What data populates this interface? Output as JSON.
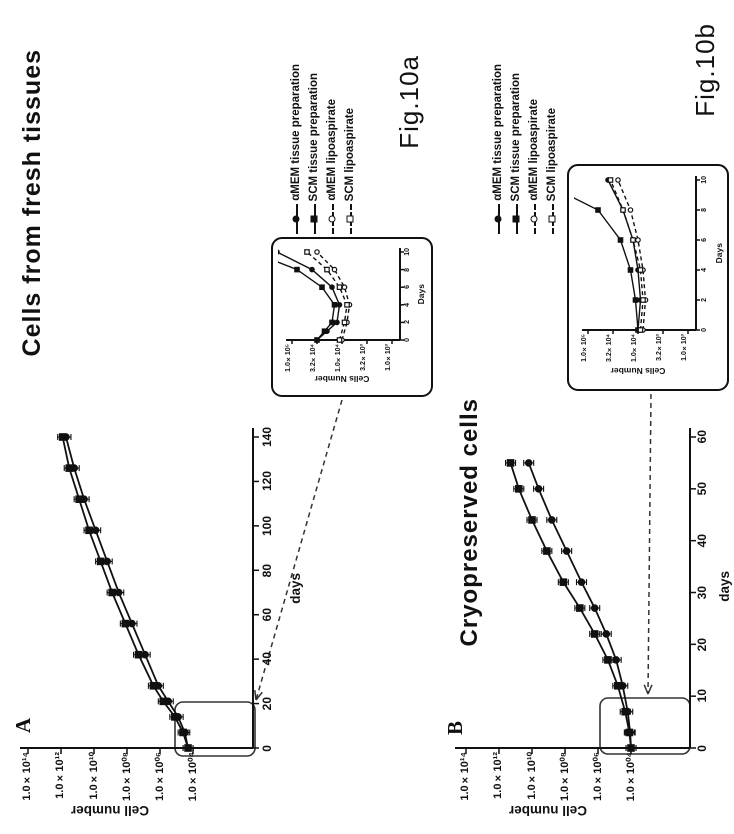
{
  "page": {
    "background": "#ffffff",
    "ink": "#111111"
  },
  "fig_labels": {
    "a": "Fig.10a",
    "b": "Fig.10b"
  },
  "panel_a": {
    "marker": "A",
    "title": "Cells from fresh tissues",
    "axis": {
      "value_label": "Cell number",
      "day_label": "days",
      "value_tick_labels": [
        "1.0×10¹⁴",
        "1.0×10¹²",
        "1.0×10¹⁰",
        "1.0×10⁰⁸",
        "1.0×10⁰⁶",
        "1.0×10⁰⁴"
      ],
      "day_tick_labels": [
        "0",
        "20",
        "40",
        "60",
        "80",
        "100",
        "120",
        "140"
      ]
    },
    "legend": [
      {
        "label": "αMEM tissue preparation",
        "marker": "filled-circle",
        "line": "solid"
      },
      {
        "label": "SCM tissue preparation",
        "marker": "filled-square",
        "line": "solid"
      },
      {
        "label": "αMEM lipoaspirate",
        "marker": "open-circle",
        "line": "dashed"
      },
      {
        "label": "SCM lipoaspirate",
        "marker": "open-square",
        "line": "dashed"
      }
    ],
    "inset": {
      "value_label": "Cells Number",
      "day_label": "Days",
      "value_tick_labels": [
        "1.0×10⁵",
        "3.2×10⁴",
        "1.0×10⁴",
        "3.2×10³",
        "1.0×10³"
      ],
      "day_tick_labels": [
        "0",
        "2",
        "4",
        "6",
        "8",
        "10"
      ]
    }
  },
  "panel_b": {
    "marker": "B",
    "title": "Cryopreserved cells",
    "axis": {
      "value_label": "Cell number",
      "day_label": "days",
      "value_tick_labels": [
        "1.0×10¹⁴",
        "1.0×10¹²",
        "1.0×10¹⁰",
        "1.0×10⁰⁸",
        "1.0×10⁰⁶",
        "1.0×10⁰⁴"
      ],
      "day_tick_labels": [
        "0",
        "10",
        "20",
        "30",
        "40",
        "50",
        "60"
      ]
    },
    "legend": [
      {
        "label": "αMEM tissue preparation",
        "marker": "filled-circle",
        "line": "solid"
      },
      {
        "label": "SCM tissue preparation",
        "marker": "filled-square",
        "line": "solid"
      },
      {
        "label": "αMEM lipoaspirate",
        "marker": "open-circle",
        "line": "dashed"
      },
      {
        "label": "SCM lipoaspirate",
        "marker": "open-square",
        "line": "dashed"
      }
    ],
    "inset": {
      "value_label": "Cells Number",
      "day_label": "Days",
      "value_tick_labels": [
        "1.0×10⁵",
        "3.2×10⁴",
        "1.0×10⁴",
        "3.2×10³",
        "1.0×10³"
      ],
      "day_tick_labels": [
        "0",
        "2",
        "4",
        "6",
        "8",
        "10"
      ]
    }
  },
  "chart_data": [
    {
      "id": "main_a",
      "type": "line",
      "panel": "A",
      "title": "Cells from fresh tissues",
      "xlabel": "days",
      "ylabel": "Cell number",
      "x_range": [
        0,
        140
      ],
      "x_ticks": [
        0,
        20,
        40,
        60,
        80,
        100,
        120,
        140
      ],
      "y_scale": "log10",
      "y_tick_exponents": [
        14,
        12,
        10,
        8,
        6,
        4
      ],
      "error_bars": true,
      "series": [
        {
          "name": "αMEM tissue preparation",
          "marker": "filled-circle",
          "line": "solid",
          "x": [
            0,
            7,
            14,
            21,
            28,
            42,
            56,
            70,
            84,
            98,
            112,
            126,
            140
          ],
          "y_log10": [
            4.3,
            4.5,
            4.9,
            5.5,
            6.1,
            6.9,
            7.7,
            8.5,
            9.2,
            9.9,
            10.6,
            11.2,
            11.7
          ]
        },
        {
          "name": "SCM tissue preparation",
          "marker": "filled-square",
          "line": "solid",
          "x": [
            0,
            7,
            14,
            21,
            28,
            42,
            56,
            70,
            84,
            98,
            112,
            126,
            140
          ],
          "y_log10": [
            4.3,
            4.6,
            5.1,
            5.8,
            6.4,
            7.3,
            8.1,
            8.9,
            9.6,
            10.3,
            10.9,
            11.5,
            11.9
          ]
        }
      ]
    },
    {
      "id": "inset_a",
      "type": "line",
      "panel": "A",
      "title": "Inset: first 10 days (fresh tissues)",
      "xlabel": "Days",
      "ylabel": "Cells Number",
      "x_range": [
        0,
        10
      ],
      "x_ticks": [
        0,
        2,
        4,
        6,
        8,
        10
      ],
      "y_scale": "log10",
      "y_tick_exponents": [
        5,
        4.5,
        4,
        3.5,
        3
      ],
      "error_bars": false,
      "series": [
        {
          "name": "αMEM tissue preparation",
          "marker": "filled-circle",
          "line": "solid",
          "x": [
            0,
            1,
            2,
            4,
            6,
            8,
            10
          ],
          "y_log10": [
            4.5,
            4.3,
            4.1,
            4.05,
            4.2,
            4.6,
            5.3
          ]
        },
        {
          "name": "SCM tissue preparation",
          "marker": "filled-square",
          "line": "solid",
          "x": [
            0,
            1,
            2,
            4,
            6,
            8,
            10
          ],
          "y_log10": [
            4.5,
            4.35,
            4.2,
            4.15,
            4.4,
            4.9,
            5.8
          ]
        },
        {
          "name": "αMEM lipoaspirate",
          "marker": "open-circle",
          "line": "dashed",
          "x": [
            0,
            2,
            4,
            6,
            8,
            10
          ],
          "y_log10": [
            4.0,
            3.9,
            3.85,
            3.95,
            4.15,
            4.5
          ]
        },
        {
          "name": "SCM lipoaspirate",
          "marker": "open-square",
          "line": "dashed",
          "x": [
            0,
            2,
            4,
            6,
            8,
            10
          ],
          "y_log10": [
            4.05,
            3.95,
            3.9,
            4.05,
            4.3,
            4.7
          ]
        }
      ]
    },
    {
      "id": "main_b",
      "type": "line",
      "panel": "B",
      "title": "Cryopreserved cells",
      "xlabel": "days",
      "ylabel": "Cell number",
      "x_range": [
        0,
        60
      ],
      "x_ticks": [
        0,
        10,
        20,
        30,
        40,
        50,
        60
      ],
      "y_scale": "log10",
      "y_tick_exponents": [
        14,
        12,
        10,
        8,
        6,
        4
      ],
      "error_bars": true,
      "series": [
        {
          "name": "αMEM tissue preparation",
          "marker": "filled-circle",
          "line": "solid",
          "x": [
            0,
            3,
            7,
            12,
            17,
            22,
            27,
            32,
            38,
            44,
            50,
            55
          ],
          "y_log10": [
            4.0,
            4.05,
            4.2,
            4.5,
            4.9,
            5.5,
            6.2,
            7.0,
            7.9,
            8.8,
            9.6,
            10.2
          ]
        },
        {
          "name": "SCM tissue preparation",
          "marker": "filled-square",
          "line": "solid",
          "x": [
            0,
            3,
            7,
            12,
            17,
            22,
            27,
            32,
            38,
            44,
            50,
            55
          ],
          "y_log10": [
            4.0,
            4.1,
            4.35,
            4.8,
            5.4,
            6.2,
            7.1,
            8.1,
            9.1,
            10.0,
            10.8,
            11.3
          ]
        }
      ]
    },
    {
      "id": "inset_b",
      "type": "line",
      "panel": "B",
      "title": "Inset: first 10 days (cryopreserved)",
      "xlabel": "Days",
      "ylabel": "Cells Number",
      "x_range": [
        0,
        10
      ],
      "x_ticks": [
        0,
        2,
        4,
        6,
        8,
        10
      ],
      "y_scale": "log10",
      "y_tick_exponents": [
        5,
        4.5,
        4,
        3.5,
        3
      ],
      "error_bars": false,
      "series": [
        {
          "name": "αMEM tissue preparation",
          "marker": "filled-circle",
          "line": "solid",
          "x": [
            0,
            2,
            4,
            6,
            8,
            10
          ],
          "y_log10": [
            4.0,
            3.95,
            4.0,
            4.1,
            4.3,
            4.6
          ]
        },
        {
          "name": "SCM tissue preparation",
          "marker": "filled-square",
          "line": "solid",
          "x": [
            0,
            2,
            4,
            6,
            8,
            10
          ],
          "y_log10": [
            4.0,
            4.05,
            4.15,
            4.35,
            4.8,
            6.0
          ]
        },
        {
          "name": "αMEM lipoaspirate",
          "marker": "open-circle",
          "line": "dashed",
          "x": [
            0,
            2,
            4,
            6,
            8,
            10
          ],
          "y_log10": [
            3.9,
            3.85,
            3.9,
            4.0,
            4.15,
            4.4
          ]
        },
        {
          "name": "SCM lipoaspirate",
          "marker": "open-square",
          "line": "dashed",
          "x": [
            0,
            2,
            4,
            6,
            8,
            10
          ],
          "y_log10": [
            3.95,
            3.9,
            3.95,
            4.1,
            4.3,
            4.55
          ]
        }
      ]
    }
  ]
}
